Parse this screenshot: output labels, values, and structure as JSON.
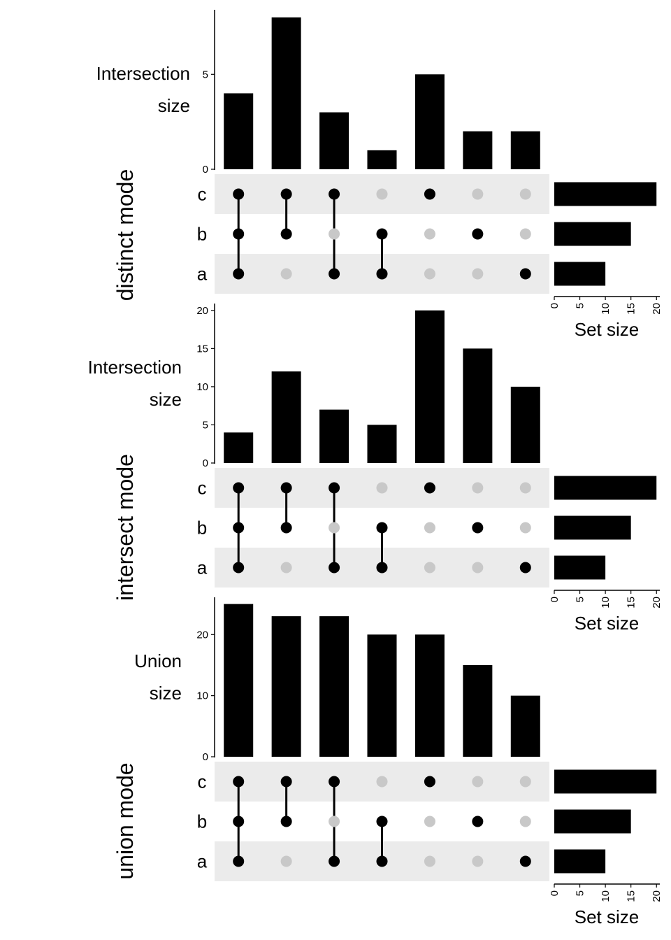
{
  "chart_data": [
    {
      "type": "bar",
      "mode_label": "distinct mode",
      "ylabel_lines": [
        "Intersection",
        "size"
      ],
      "ylim": [
        0,
        8.4
      ],
      "yticks": [
        0,
        5
      ],
      "values": [
        4,
        8,
        3,
        1,
        5,
        2,
        2
      ]
    },
    {
      "type": "bar",
      "mode_label": "intersect mode",
      "ylabel_lines": [
        "Intersection",
        "size"
      ],
      "ylim": [
        0,
        20.9
      ],
      "yticks": [
        0,
        5,
        10,
        15,
        20
      ],
      "values": [
        4,
        12,
        7,
        5,
        20,
        15,
        10
      ]
    },
    {
      "type": "bar",
      "mode_label": "union mode",
      "ylabel_lines": [
        "Union",
        "size"
      ],
      "ylim": [
        0,
        26.1
      ],
      "yticks": [
        0,
        10,
        20
      ],
      "values": [
        25,
        23,
        23,
        20,
        20,
        15,
        10
      ]
    }
  ],
  "combinations": [
    [
      "c",
      "b",
      "a"
    ],
    [
      "c",
      "b"
    ],
    [
      "c",
      "a"
    ],
    [
      "b",
      "a"
    ],
    [
      "c"
    ],
    [
      "b"
    ],
    [
      "a"
    ]
  ],
  "sets": {
    "names": [
      "c",
      "b",
      "a"
    ],
    "sizes": [
      20,
      15,
      10
    ],
    "xlim": [
      0,
      21.2
    ],
    "xticks": [
      0,
      5,
      10,
      15,
      20
    ],
    "xlabel": "Set size"
  },
  "colors": {
    "bar": "#000000",
    "dot_active": "#000000",
    "dot_inactive": "#c8c8c8",
    "row_stripe": "#ebebeb"
  }
}
